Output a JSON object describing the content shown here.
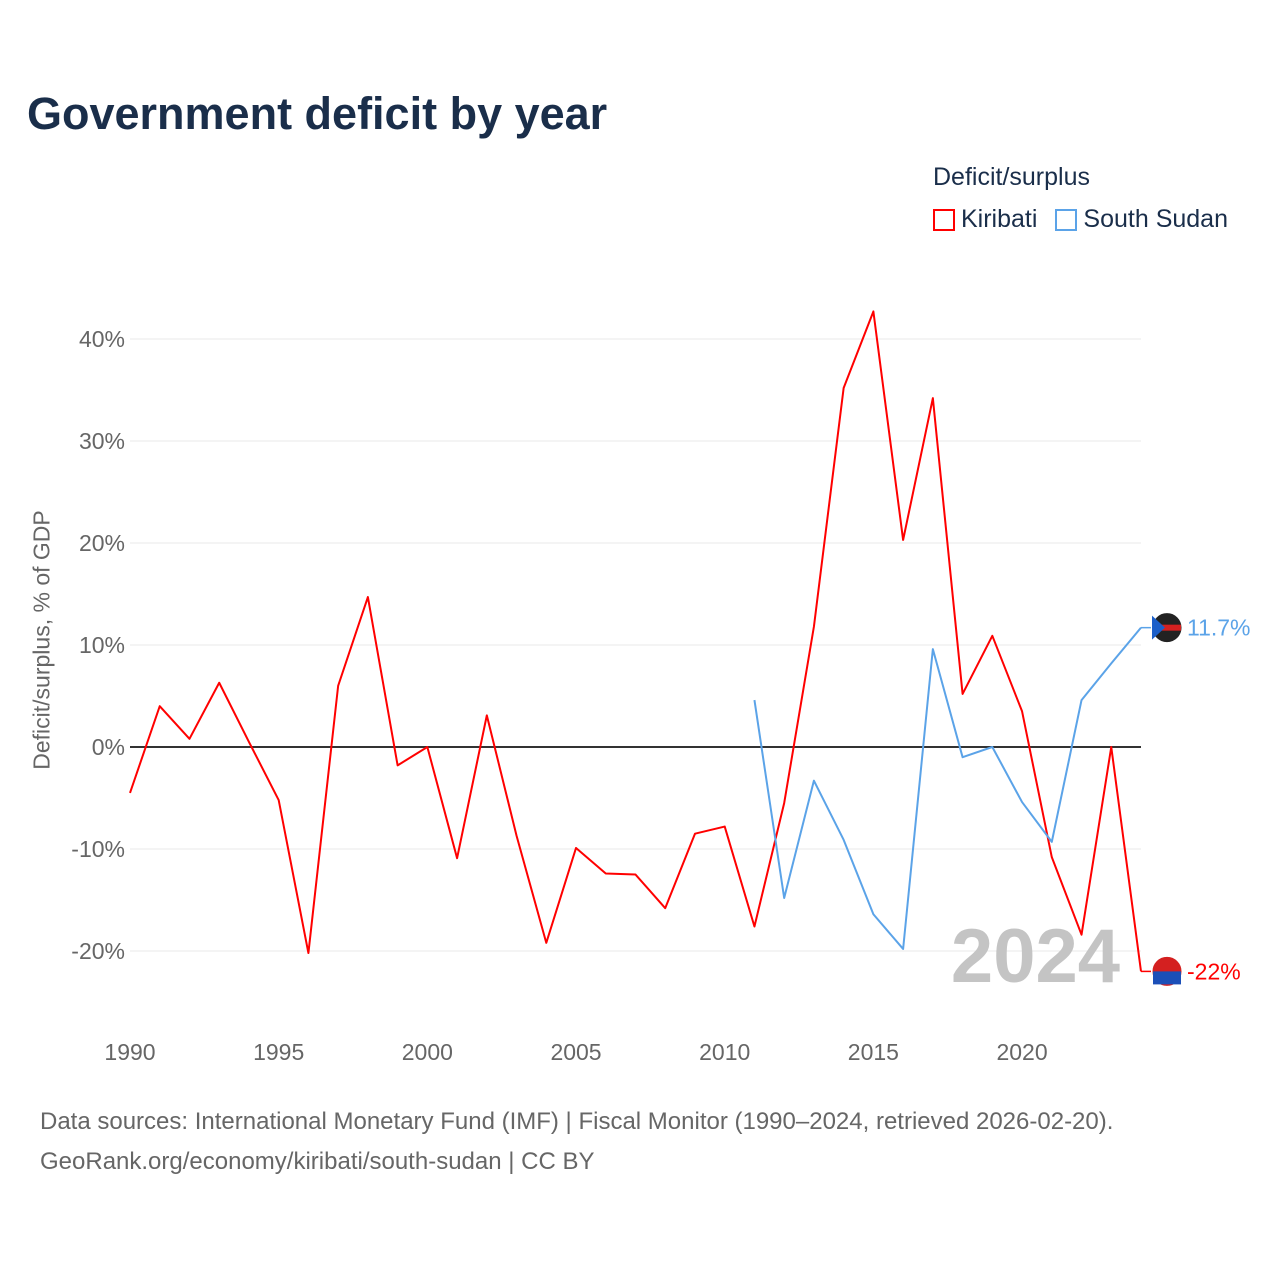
{
  "title": "Government deficit by year",
  "legend": {
    "title": "Deficit/surplus",
    "items": [
      {
        "label": "Kiribati",
        "color": "#ff0000"
      },
      {
        "label": "South Sudan",
        "color": "#5ba3e8"
      }
    ]
  },
  "footer": {
    "line1": "Data sources: International Monetary Fund (IMF) | Fiscal Monitor (1990–2024, retrieved 2026-02-20).",
    "line2": "GeoRank.org/economy/kiribati/south-sudan | CC BY"
  },
  "chart_data": {
    "type": "line",
    "title": "Government deficit by year",
    "xlabel": "",
    "ylabel": "Deficit/surplus, % of GDP",
    "xlim": [
      1990,
      2024
    ],
    "ylim": [
      -20,
      40
    ],
    "x_ticks": [
      "1990",
      "1995",
      "2000",
      "2005",
      "2010",
      "2015",
      "2020"
    ],
    "y_ticks": [
      "-20%",
      "-10%",
      "0%",
      "10%",
      "20%",
      "30%",
      "40%"
    ],
    "year_watermark": "2024",
    "series": [
      {
        "name": "Kiribati",
        "color": "#ff0000",
        "end_label": "-22%",
        "x": [
          1990,
          1991,
          1992,
          1993,
          1994,
          1995,
          1996,
          1997,
          1998,
          1999,
          2000,
          2001,
          2002,
          2003,
          2004,
          2005,
          2006,
          2007,
          2008,
          2009,
          2010,
          2011,
          2012,
          2013,
          2014,
          2015,
          2016,
          2017,
          2018,
          2019,
          2020,
          2021,
          2022,
          2023,
          2024
        ],
        "values": [
          -4.5,
          4.0,
          0.8,
          6.3,
          0.5,
          -5.2,
          -20.2,
          6.0,
          14.7,
          -1.8,
          0,
          -10.9,
          3.1,
          -8.7,
          -19.2,
          -9.9,
          -12.4,
          -12.5,
          -15.8,
          -8.5,
          -7.8,
          -17.6,
          -5.5,
          11.8,
          35.2,
          42.7,
          20.3,
          34.2,
          5.2,
          10.9,
          3.5,
          -10.8,
          -18.4,
          0,
          -22
        ]
      },
      {
        "name": "South Sudan",
        "color": "#5ba3e8",
        "end_label": "11.7%",
        "x": [
          2011,
          2012,
          2013,
          2014,
          2015,
          2016,
          2017,
          2018,
          2019,
          2020,
          2021,
          2022,
          2023,
          2024
        ],
        "values": [
          4.6,
          -14.8,
          -3.3,
          -9.1,
          -16.4,
          -19.8,
          9.6,
          -1.0,
          0,
          -5.4,
          -9.3,
          4.6,
          8.2,
          11.7
        ]
      }
    ]
  }
}
